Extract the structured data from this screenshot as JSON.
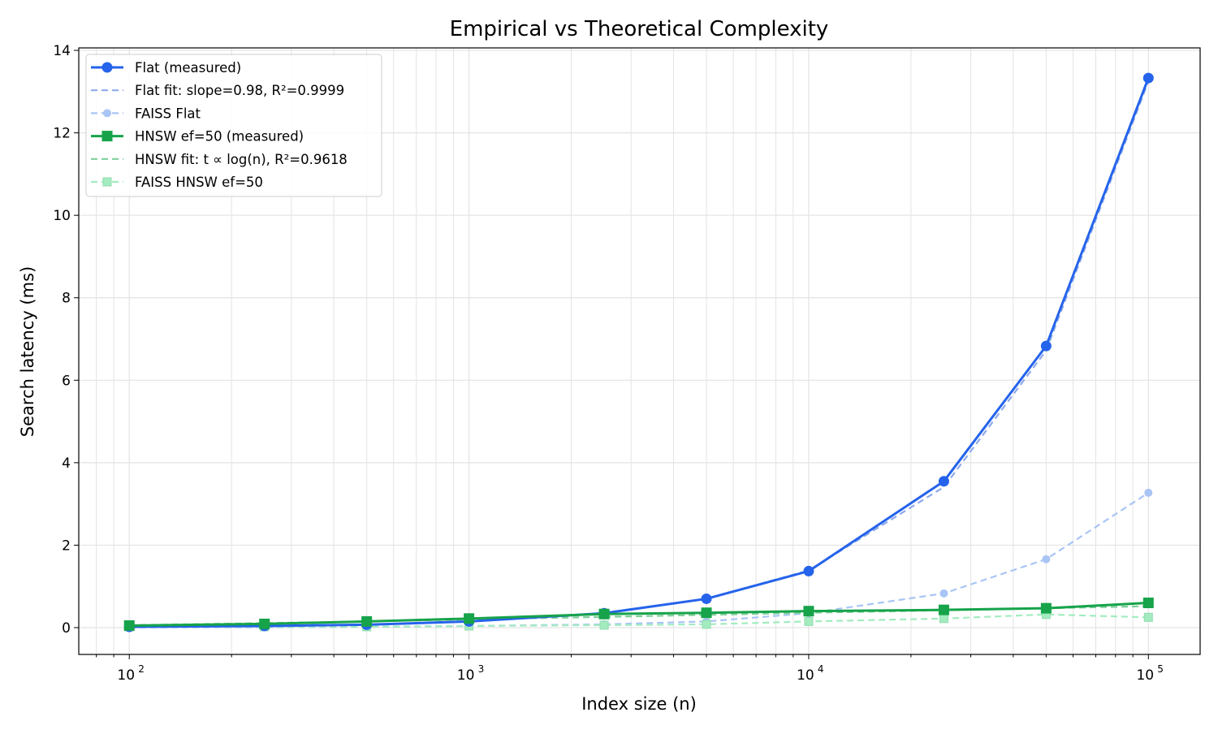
{
  "chart_data": {
    "type": "line",
    "title": "Empirical vs Theoretical Complexity",
    "xlabel": "Index size (n)",
    "ylabel": "Search latency (ms)",
    "xscale": "log",
    "xlim": [
      71,
      142000
    ],
    "ylim": [
      -0.65,
      14.06
    ],
    "x_ticks": [
      100,
      1000,
      10000,
      100000
    ],
    "x_tick_labels": [
      [
        "10",
        "2"
      ],
      [
        "10",
        "3"
      ],
      [
        "10",
        "4"
      ],
      [
        "10",
        "5"
      ]
    ],
    "y_ticks": [
      0,
      2,
      4,
      6,
      8,
      10,
      12,
      14
    ],
    "y_tick_labels": [
      "0",
      "2",
      "4",
      "6",
      "8",
      "10",
      "12",
      "14"
    ],
    "grid": true,
    "legend_position": "top-left",
    "x": [
      100,
      250,
      500,
      1000,
      2500,
      5000,
      10000,
      25000,
      50000,
      100000
    ],
    "series": [
      {
        "name": "Flat (measured)",
        "color": "#2563eb",
        "style": "solid",
        "marker": "circle",
        "values": [
          0.02,
          0.04,
          0.07,
          0.15,
          0.35,
          0.7,
          1.37,
          3.55,
          6.83,
          13.33
        ]
      },
      {
        "name": "Flat fit: slope=0.98, R²=0.9999",
        "color": "#8eaaea",
        "style": "dashed",
        "marker": "none",
        "values": [
          0.015,
          0.037,
          0.074,
          0.145,
          0.356,
          0.703,
          1.387,
          3.41,
          6.72,
          13.25
        ]
      },
      {
        "name": "FAISS Flat",
        "color": "#a9c5f5",
        "style": "dashed",
        "marker": "small-circle",
        "values": [
          0.005,
          0.01,
          0.02,
          0.04,
          0.08,
          0.15,
          0.35,
          0.83,
          1.66,
          3.27
        ]
      },
      {
        "name": "HNSW ef=50 (measured)",
        "color": "#16a34a",
        "style": "solid",
        "marker": "square",
        "values": [
          0.05,
          0.09,
          0.15,
          0.22,
          0.33,
          0.36,
          0.4,
          0.43,
          0.47,
          0.6
        ]
      },
      {
        "name": "HNSW fit: t ∝ log(n), R²=0.9618",
        "color": "#7fcf9b",
        "style": "dashed",
        "marker": "none",
        "values": [
          0.06,
          0.11,
          0.15,
          0.2,
          0.26,
          0.31,
          0.36,
          0.42,
          0.47,
          0.52
        ]
      },
      {
        "name": "FAISS HNSW ef=50",
        "color": "#a3ecc0",
        "style": "dashed",
        "marker": "small-square",
        "values": [
          0.02,
          0.02,
          0.02,
          0.04,
          0.06,
          0.08,
          0.15,
          0.22,
          0.32,
          0.25
        ]
      }
    ]
  }
}
